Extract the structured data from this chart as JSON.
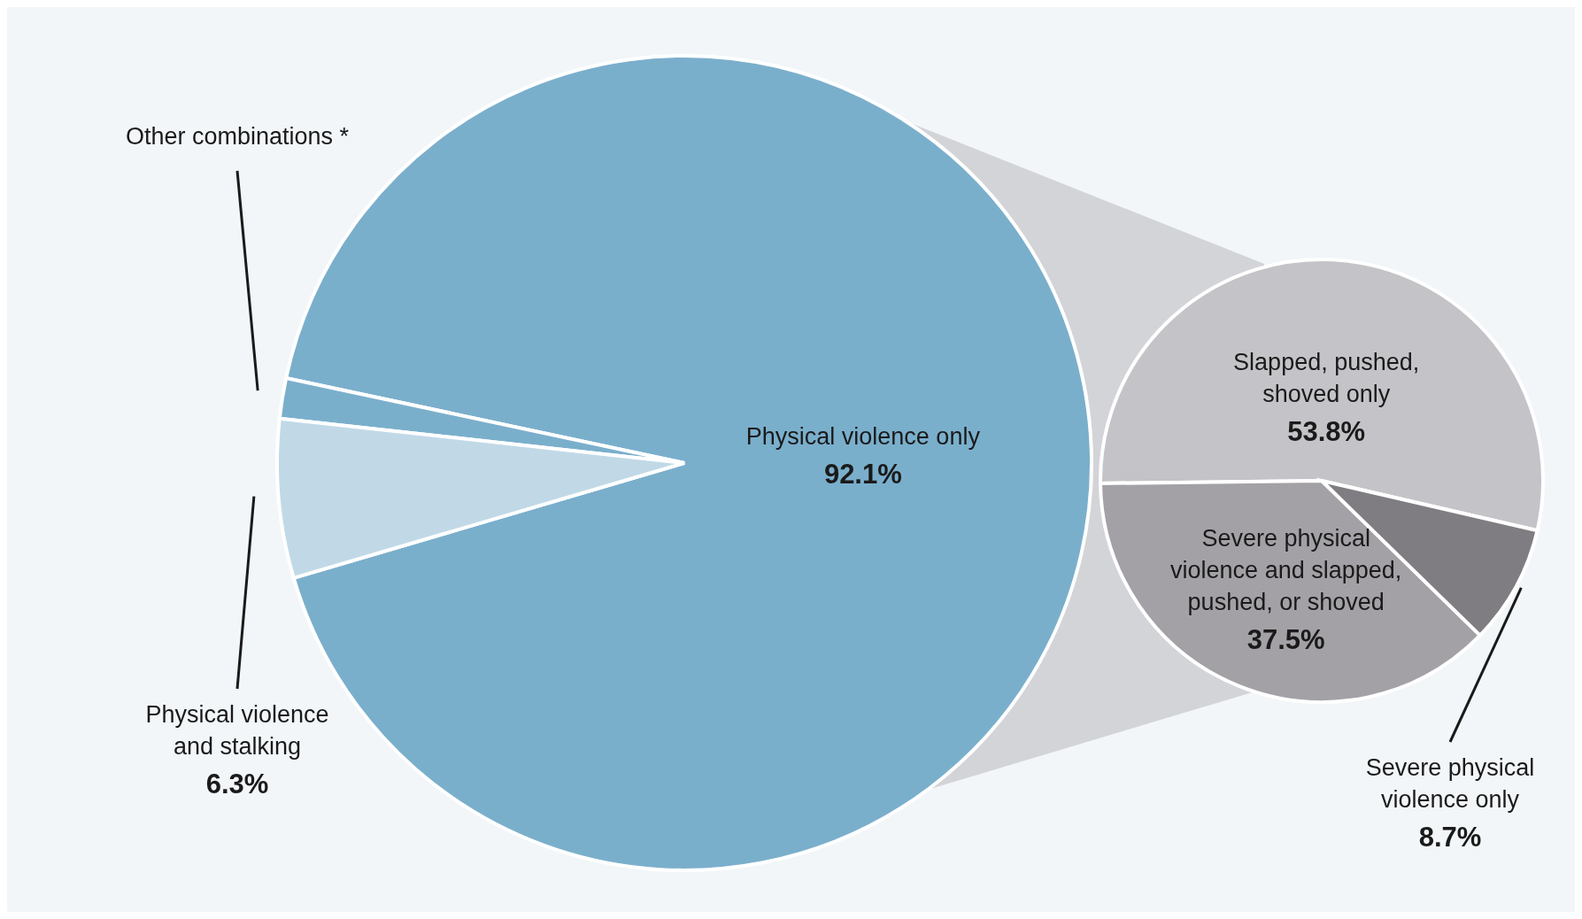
{
  "chart_data": [
    {
      "type": "pie",
      "categories": [
        "Physical violence only",
        "Other combinations *",
        "Physical violence and stalking"
      ],
      "values": [
        92.1,
        1.6,
        6.3
      ],
      "value_labels": [
        "92.1%",
        null,
        "6.3%"
      ],
      "colors": [
        "#7aafcc",
        "#7aafcc",
        "#c1d9e7"
      ],
      "legend": false
    },
    {
      "type": "pie",
      "categories": [
        "Slapped, pushed, shoved only",
        "Severe physical violence and slapped, pushed, or shoved",
        "Severe physical violence only"
      ],
      "values": [
        53.8,
        37.5,
        8.7
      ],
      "value_labels": [
        "53.8%",
        "37.5%",
        "8.7%"
      ],
      "colors": [
        "#c4c3c7",
        "#a3a1a6",
        "#807d82"
      ],
      "legend": false
    }
  ]
}
